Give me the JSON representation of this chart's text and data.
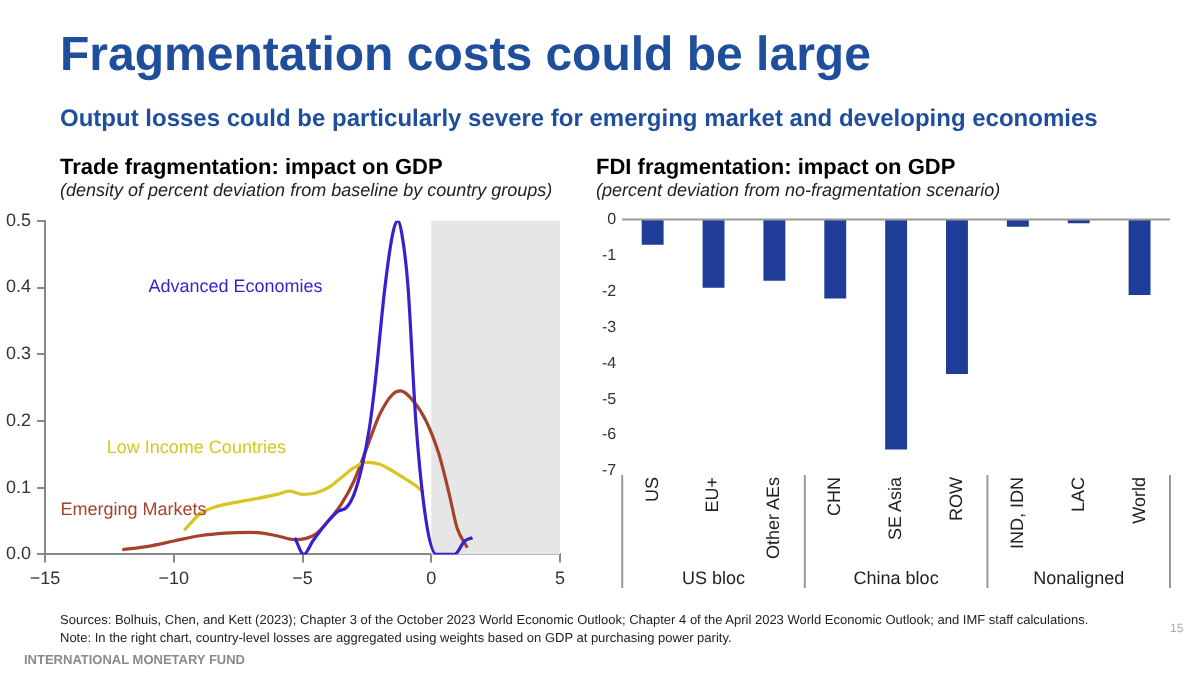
{
  "chart_data": [
    {
      "type": "line",
      "title": "Trade fragmentation: impact on GDP",
      "subtitle": "(density of percent deviation from baseline by country groups)",
      "annotations": [
        "Fragmentation costs could be large",
        "Output losses could be particularly severe for emerging market and developing economies",
        "Sources: Bolhuis, Chen, and Kett (2023); Chapter 3 of the October 2023 World Economic Outlook; Chapter 4 of the April 2023 World Economic Outlook; and IMF staff calculations.",
        "Note: In the right chart, country-level  losses are aggregated  using weights based on GDP at purchasing  power parity.",
        "INTERNATIONAL MONETARY FUND",
        "15"
      ],
      "series": [
        {
          "name": "Advanced Economies",
          "color": "#3a1fd0",
          "x": [
            -5.3,
            -4.95,
            -4.6,
            -4,
            -3.6,
            -3.3,
            -3,
            -2.7,
            -2.4,
            -2.2,
            -1.8,
            -1.5,
            -1.3,
            -1.1,
            -0.9,
            -0.6,
            -0.2,
            0.2,
            0.9,
            1.3,
            1.6
          ],
          "values": [
            0.025,
            0,
            0.02,
            0.05,
            0.065,
            0.07,
            0.09,
            0.13,
            0.19,
            0.25,
            0.4,
            0.48,
            0.5,
            0.47,
            0.4,
            0.2,
            0.05,
            0,
            0,
            0.02,
            0.025
          ]
        },
        {
          "name": "Low Income Countries",
          "color": "#d8c51f",
          "x": [
            -9.6,
            -9,
            -8.5,
            -8,
            -7,
            -6,
            -5.5,
            -5,
            -4.5,
            -4,
            -3.5,
            -3,
            -2.5,
            -2,
            -1.5,
            -1,
            -0.5,
            -0.3
          ],
          "values": [
            0.036,
            0.06,
            0.07,
            0.075,
            0.082,
            0.09,
            0.095,
            0.09,
            0.092,
            0.1,
            0.115,
            0.13,
            0.138,
            0.135,
            0.125,
            0.113,
            0.1,
            0.093
          ]
        },
        {
          "name": "Emerging Markets",
          "color": "#a5432a",
          "x": [
            -12,
            -11,
            -10,
            -9,
            -8,
            -7,
            -6,
            -5.3,
            -4.5,
            -4,
            -3.5,
            -3,
            -2.5,
            -2,
            -1.5,
            -1.2,
            -0.7,
            -0.2,
            0.3,
            0.7,
            1,
            1.4
          ],
          "values": [
            0.007,
            0.012,
            0.02,
            0.028,
            0.032,
            0.033,
            0.028,
            0.022,
            0.03,
            0.05,
            0.075,
            0.11,
            0.16,
            0.21,
            0.24,
            0.245,
            0.23,
            0.2,
            0.15,
            0.09,
            0.04,
            0.01
          ]
        }
      ],
      "xlim": [
        -15,
        5
      ],
      "xticks": [
        {
          "value": -15,
          "label": "−15"
        },
        {
          "value": -10,
          "label": "−10"
        },
        {
          "value": -5,
          "label": "−5"
        },
        0,
        5
      ],
      "ylim": [
        0,
        0.5
      ],
      "yticks": [
        {
          "value": 0,
          "label": "0.0"
        },
        0.1,
        0.2,
        0.3,
        0.4,
        0.5
      ],
      "bands": [
        {
          "axis": "x",
          "from": 0,
          "to": 5,
          "color": "#e6e6e6"
        }
      ],
      "legend": false,
      "grid": false
    },
    {
      "type": "bar",
      "title": "FDI fragmentation: impact on GDP",
      "subtitle": "(percent deviation from no-fragmentation scenario)",
      "categories": [
        "US",
        "EU+",
        "Other AEs",
        "CHN",
        "SE Asia",
        "ROW",
        "IND, IDN",
        "LAC",
        "World"
      ],
      "values": [
        -0.7,
        -1.9,
        -1.7,
        -2.2,
        -6.4,
        -4.3,
        -0.2,
        -0.1,
        -2.1
      ],
      "color": "#1f3c99",
      "ylim": [
        -7,
        0
      ],
      "yticks": [
        0,
        -1,
        -2,
        -3,
        -4,
        -5,
        -6,
        -7
      ],
      "annotations": [
        "US bloc",
        "China bloc",
        "Nonaligned"
      ],
      "legend": false,
      "grid": false
    }
  ]
}
